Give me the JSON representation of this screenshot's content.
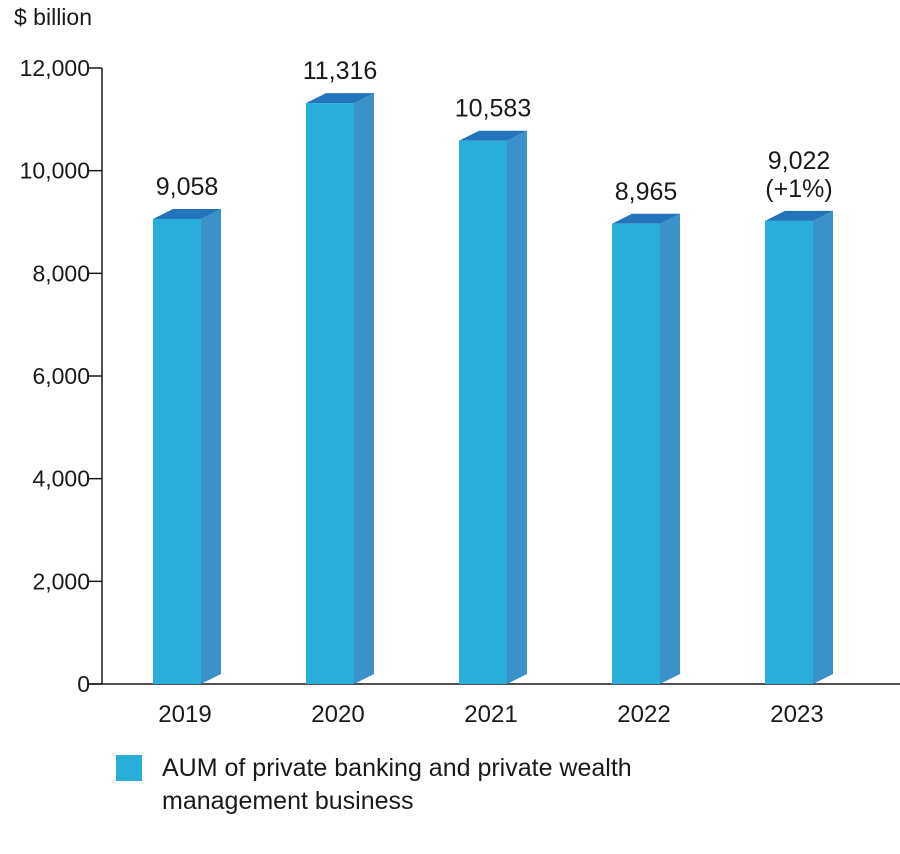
{
  "chart_data": {
    "type": "bar",
    "unit_label": "$ billion",
    "categories": [
      "2019",
      "2020",
      "2021",
      "2022",
      "2023"
    ],
    "series": [
      {
        "name": "AUM of private banking and private wealth management business",
        "values": [
          9058,
          11316,
          10583,
          8965,
          9022
        ]
      }
    ],
    "data_labels": [
      [
        "9,058"
      ],
      [
        "11,316"
      ],
      [
        "10,583"
      ],
      [
        "8,965"
      ],
      [
        "9,022",
        "(+1%)"
      ]
    ],
    "y_ticks": [
      0,
      2000,
      4000,
      6000,
      8000,
      10000,
      12000
    ],
    "y_tick_labels": [
      "0",
      "2,000",
      "4,000",
      "6,000",
      "8,000",
      "10,000",
      "12,000"
    ],
    "ylim": [
      0,
      12000
    ],
    "grid": false,
    "legend_position": "bottom-left",
    "colors": {
      "bar_front": "#29AEDC",
      "bar_side": "#3A92C8",
      "bar_top": "#2474BC",
      "axis": "#1a1a1a"
    }
  },
  "legend": {
    "label": "AUM of private banking and private wealth management business"
  }
}
